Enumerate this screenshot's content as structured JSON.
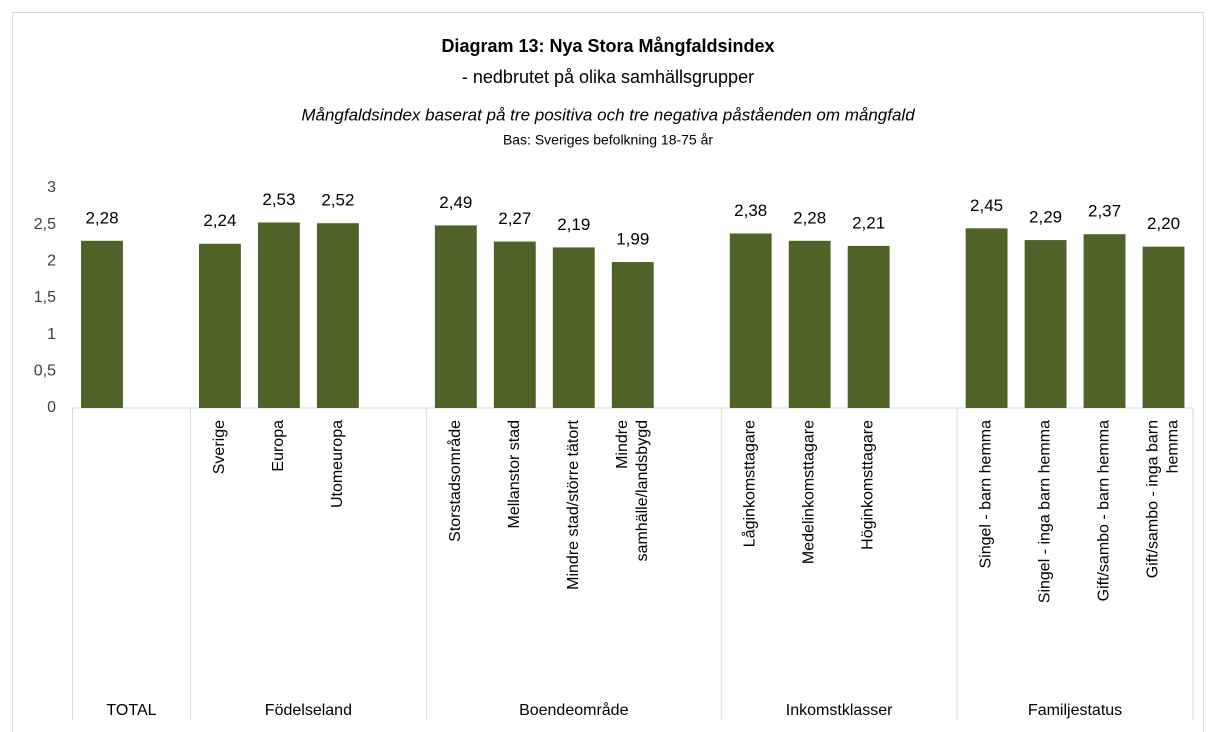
{
  "chart_data": {
    "type": "bar",
    "title": "Diagram 13: Nya Stora Mångfaldsindex",
    "subtitle": "- nedbrutet på olika samhällsgrupper",
    "description": "Mångfaldsindex baserat på tre positiva och tre negativa påståenden om mångfald",
    "note": "Bas: Sveriges befolkning 18-75 år",
    "color": "#4f6228",
    "ylim": [
      0,
      3
    ],
    "yticks": [
      0,
      {
        "value": 0.5,
        "label": "0,5"
      },
      1,
      {
        "value": 1.5,
        "label": "1,5"
      },
      2,
      {
        "value": 2.5,
        "label": "2,5"
      },
      3
    ],
    "groups": [
      {
        "name": "TOTAL",
        "categories": [
          null
        ],
        "values": [
          2.28
        ],
        "value_labels": [
          "2,28"
        ]
      },
      {
        "name": "Födelseland",
        "categories": [
          "Sverige",
          "Europa",
          "Utomeuropa"
        ],
        "values": [
          2.24,
          2.53,
          2.52
        ],
        "value_labels": [
          "2,24",
          "2,53",
          "2,52"
        ]
      },
      {
        "name": "Boendeområde",
        "categories": [
          "Storstadsområde",
          "Mellanstor stad",
          "Mindre stad/större tätort",
          "Mindre\nsamhälle/landsbygd"
        ],
        "values": [
          2.49,
          2.27,
          2.19,
          1.99
        ],
        "value_labels": [
          "2,49",
          "2,27",
          "2,19",
          "1,99"
        ]
      },
      {
        "name": "Inkomstklasser",
        "categories": [
          "Låginkomsttagare",
          "Medelinkomsttagare",
          "Höginkomsttagare"
        ],
        "values": [
          2.38,
          2.28,
          2.21
        ],
        "value_labels": [
          "2,38",
          "2,28",
          "2,21"
        ]
      },
      {
        "name": "Familjestatus",
        "categories": [
          "Singel - barn hemma",
          "Singel - inga barn hemma",
          "Gift/sambo - barn hemma",
          "Gift/sambo - inga barn\nhemma"
        ],
        "values": [
          2.45,
          2.29,
          2.37,
          2.2
        ],
        "value_labels": [
          "2,45",
          "2,29",
          "2,37",
          "2,20"
        ]
      }
    ]
  }
}
